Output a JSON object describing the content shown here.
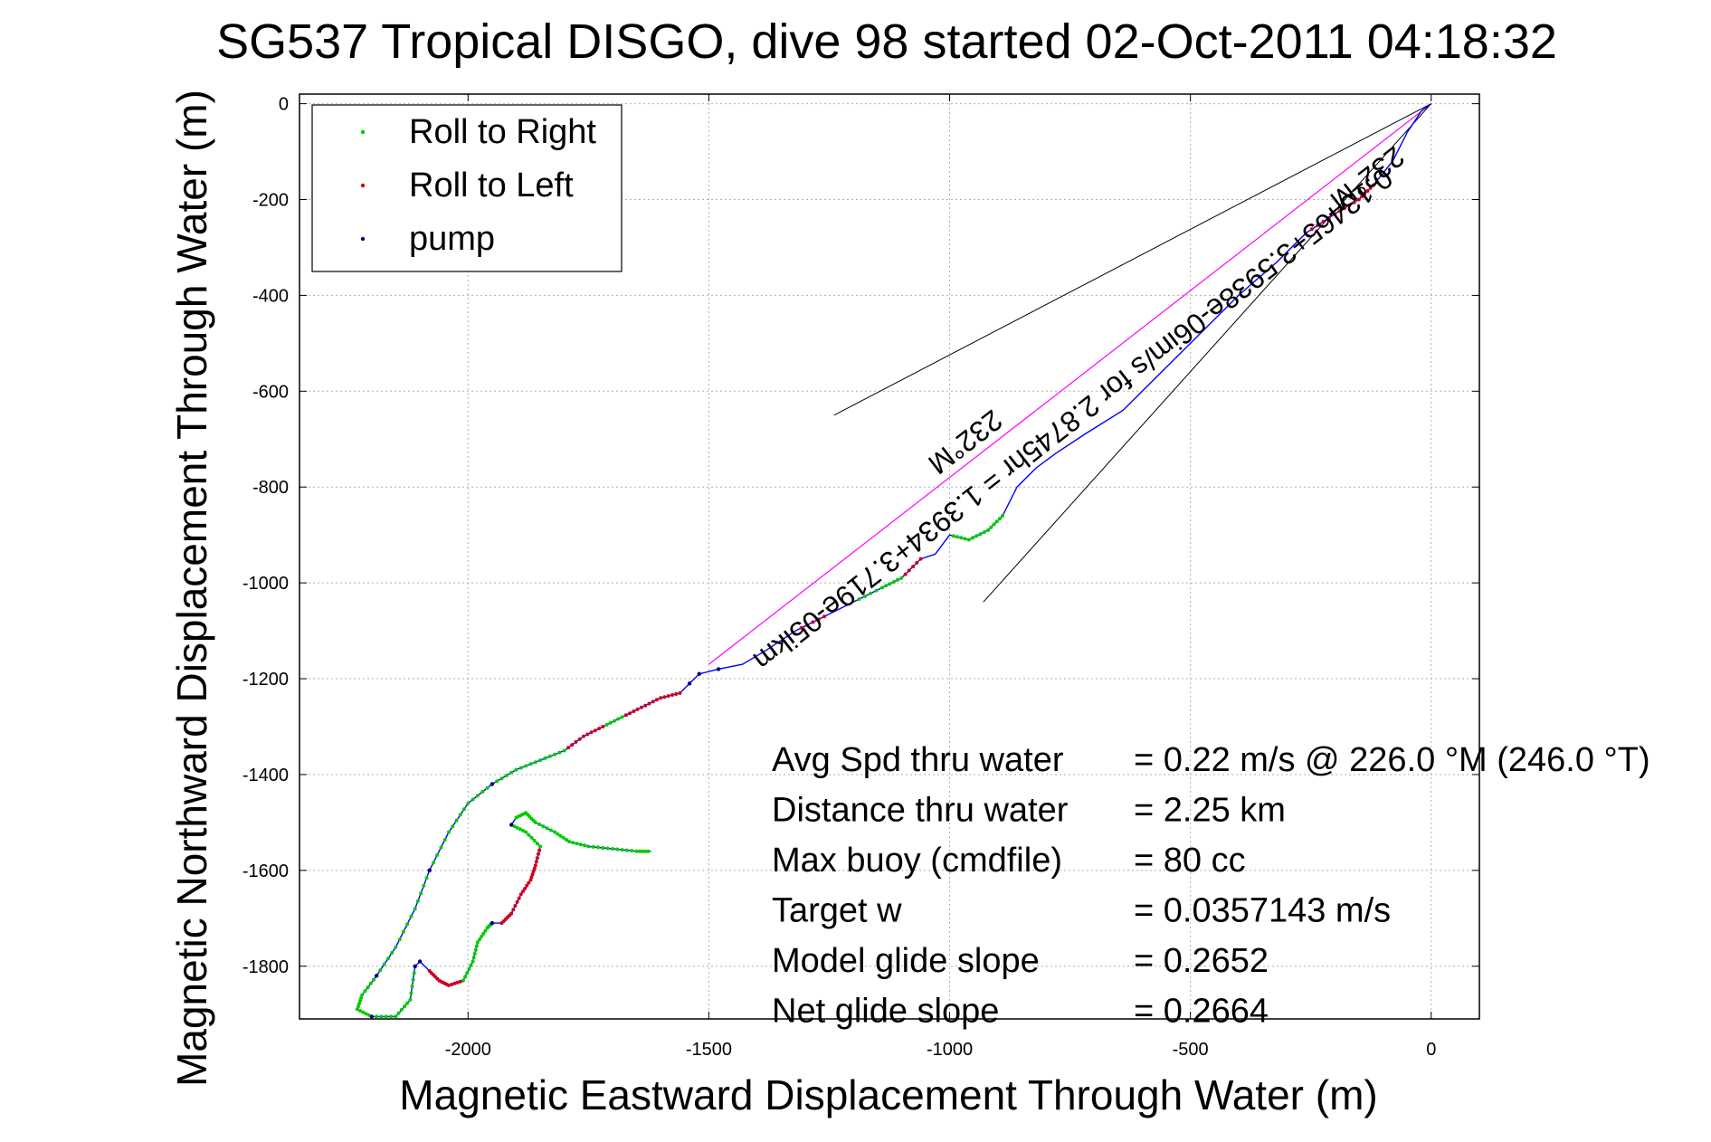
{
  "chart_data": {
    "type": "line",
    "title": "SG537 Tropical DISGO, dive 98 started 02-Oct-2011 04:18:32",
    "xlabel": "Magnetic Eastward Displacement Through Water (m)",
    "ylabel": "Magnetic Northward Displacement Through Water (m)",
    "xlim": [
      -2350,
      100
    ],
    "ylim": [
      -1910,
      20
    ],
    "xticks": [
      -2000,
      -1500,
      -1000,
      -500,
      0
    ],
    "yticks": [
      0,
      -200,
      -400,
      -600,
      -800,
      -1000,
      -1200,
      -1400,
      -1600,
      -1800
    ],
    "grid": true,
    "legend_position": "top-left",
    "legend": [
      {
        "label": "Roll to Right",
        "color": "#00cc00"
      },
      {
        "label": "Roll to Left",
        "color": "#cc0000"
      },
      {
        "label": "pump",
        "color": "#000080"
      }
    ],
    "colors": {
      "track": "#0000ff",
      "roll_right": "#00cc00",
      "roll_left": "#cc0022",
      "pump": "#000080",
      "course": "#ff00ff",
      "cone": "#000000"
    },
    "track": {
      "x": [
        0,
        -20,
        -50,
        -80,
        -120,
        -150,
        -200,
        -260,
        -320,
        -400,
        -480,
        -560,
        -640,
        -720,
        -780,
        -820,
        -860,
        -890,
        -920,
        -960,
        -1000,
        -1030,
        -1060,
        -1100,
        -1140,
        -1200,
        -1260,
        -1320,
        -1380,
        -1430,
        -1480,
        -1520,
        -1540,
        -1560,
        -1600,
        -1640,
        -1680,
        -1720,
        -1760,
        -1800,
        -1850,
        -1900,
        -1950,
        -2000,
        -2040,
        -2080,
        -2110,
        -2150,
        -2190,
        -2220,
        -2230,
        -2200,
        -2150,
        -2120,
        -2110,
        -2100,
        -2080,
        -2060,
        -2040,
        -2010,
        -1990,
        -1980,
        -1960,
        -1950,
        -1930,
        -1910,
        -1890,
        -1870,
        -1860,
        -1850,
        -1880,
        -1910,
        -1900,
        -1880,
        -1860,
        -1820,
        -1790,
        -1750,
        -1700,
        -1650,
        -1620
      ],
      "y": [
        0,
        -15,
        -60,
        -120,
        -170,
        -200,
        -230,
        -270,
        -330,
        -400,
        -480,
        -560,
        -640,
        -690,
        -730,
        -760,
        -800,
        -860,
        -890,
        -910,
        -900,
        -940,
        -950,
        -990,
        -1010,
        -1040,
        -1070,
        -1100,
        -1140,
        -1170,
        -1180,
        -1190,
        -1210,
        -1230,
        -1240,
        -1260,
        -1280,
        -1300,
        -1320,
        -1350,
        -1370,
        -1390,
        -1420,
        -1460,
        -1520,
        -1600,
        -1680,
        -1760,
        -1820,
        -1860,
        -1890,
        -1905,
        -1905,
        -1870,
        -1800,
        -1790,
        -1810,
        -1830,
        -1840,
        -1830,
        -1790,
        -1750,
        -1720,
        -1710,
        -1710,
        -1690,
        -1650,
        -1620,
        -1590,
        -1550,
        -1520,
        -1505,
        -1490,
        -1480,
        -1500,
        -1520,
        -1540,
        -1550,
        -1555,
        -1560,
        -1560
      ]
    },
    "course_line": {
      "x": [
        0,
        -1500
      ],
      "y": [
        0,
        -1170
      ]
    },
    "cone_upper": {
      "x": [
        0,
        -1240
      ],
      "y": [
        0,
        -650
      ]
    },
    "cone_lower": {
      "x": [
        0,
        -930
      ],
      "y": [
        0,
        -1040
      ]
    },
    "course_annotation": "0.13465+3.5938e-06im/s for 2.8745hr = 1.3934+3.719e-05ikm",
    "start_heading_label": "232°M",
    "mid_heading_label": "232°M",
    "stats": [
      {
        "label": "Avg Spd thru water",
        "value": "=  0.22 m/s @ 226.0 °M (246.0 °T)"
      },
      {
        "label": "Distance thru water",
        "value": "=  2.25 km"
      },
      {
        "label": "Max buoy (cmdfile)",
        "value": "= 80 cc"
      },
      {
        "label": "Target w",
        "value": "= 0.0357143 m/s"
      },
      {
        "label": "Model glide slope",
        "value": "= 0.2652"
      },
      {
        "label": "Net glide slope",
        "value": "= 0.2664"
      }
    ]
  }
}
